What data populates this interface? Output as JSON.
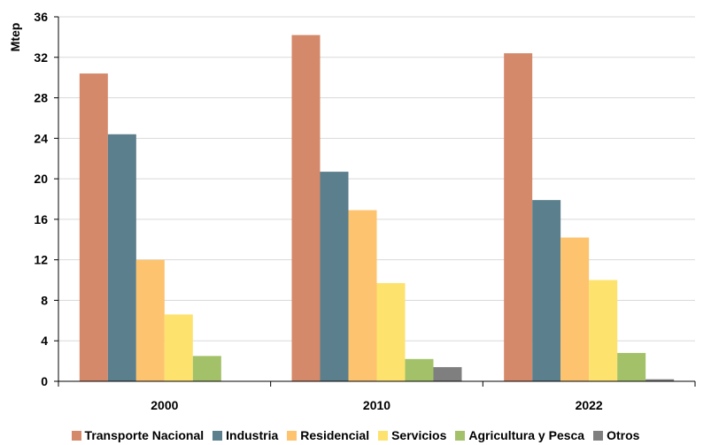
{
  "chart_data": {
    "type": "bar",
    "title": "",
    "xlabel": "",
    "ylabel": "Mtep",
    "ylim": [
      0,
      36
    ],
    "yticks": [
      0,
      4,
      8,
      12,
      16,
      20,
      24,
      28,
      32,
      36
    ],
    "categories": [
      "2000",
      "2010",
      "2022"
    ],
    "grid": true,
    "legend_position": "bottom",
    "series": [
      {
        "name": "Transporte Nacional",
        "color": "#d4896a",
        "values": [
          30.4,
          34.2,
          32.4
        ]
      },
      {
        "name": "Industria",
        "color": "#5b7f8c",
        "values": [
          24.4,
          20.7,
          17.9
        ]
      },
      {
        "name": "Residencial",
        "color": "#fdc36e",
        "values": [
          12.0,
          16.9,
          14.2
        ]
      },
      {
        "name": "Servicios",
        "color": "#fde36e",
        "values": [
          6.6,
          9.7,
          10.0
        ]
      },
      {
        "name": "Agricultura y Pesca",
        "color": "#a3c168",
        "values": [
          2.5,
          2.2,
          2.8
        ]
      },
      {
        "name": "Otros",
        "color": "#7f7f7f",
        "values": [
          0,
          1.4,
          0.2
        ]
      }
    ]
  }
}
